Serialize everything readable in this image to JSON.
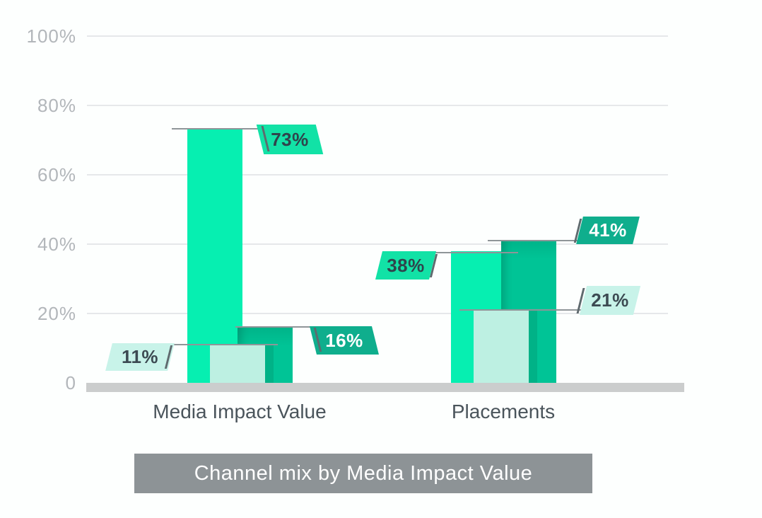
{
  "chart_data": {
    "type": "bar",
    "title": "Channel mix by Media Impact Value",
    "categories": [
      "Media Impact Value",
      "Placements"
    ],
    "series": [
      {
        "id": "bright-green",
        "values": [
          73,
          38
        ],
        "color": "#06EFB1",
        "callout_bg": "#12E2A6",
        "callout_text_color": "#2F444C"
      },
      {
        "id": "dark-teal",
        "values": [
          16,
          41
        ],
        "color": "#00C496",
        "callout_bg": "#0FAE8D",
        "callout_text_color": "#FFFFFF"
      },
      {
        "id": "light-mint",
        "values": [
          11,
          21
        ],
        "color": "#BDF0E2",
        "callout_bg": "#C8F3E9",
        "callout_text_color": "#3C4A52"
      }
    ],
    "value_labels": {
      "bright-green": [
        "73%",
        "38%"
      ],
      "dark-teal": [
        "16%",
        "41%"
      ],
      "light-mint": [
        "11%",
        "21%"
      ]
    },
    "yticks": [
      {
        "label": "100%",
        "value": 100
      },
      {
        "label": "80%",
        "value": 80
      },
      {
        "label": "60%",
        "value": 60
      },
      {
        "label": "40%",
        "value": 40
      },
      {
        "label": "20%",
        "value": 20
      },
      {
        "label": "0",
        "value": 0
      }
    ],
    "ylim": [
      0,
      100
    ],
    "grid": true,
    "legend": false,
    "colors": {
      "grid_line": "#E6E8EA",
      "baseline": "#CBCDCD",
      "connector_line": "#8F9598",
      "leader_tick": "#5F6A6E",
      "tick_label": "#B2B6BA",
      "category_label": "#4A545B",
      "title_bg": "#8D9396",
      "title_text": "#FFFFFF",
      "background": "#FDFFFE"
    }
  }
}
